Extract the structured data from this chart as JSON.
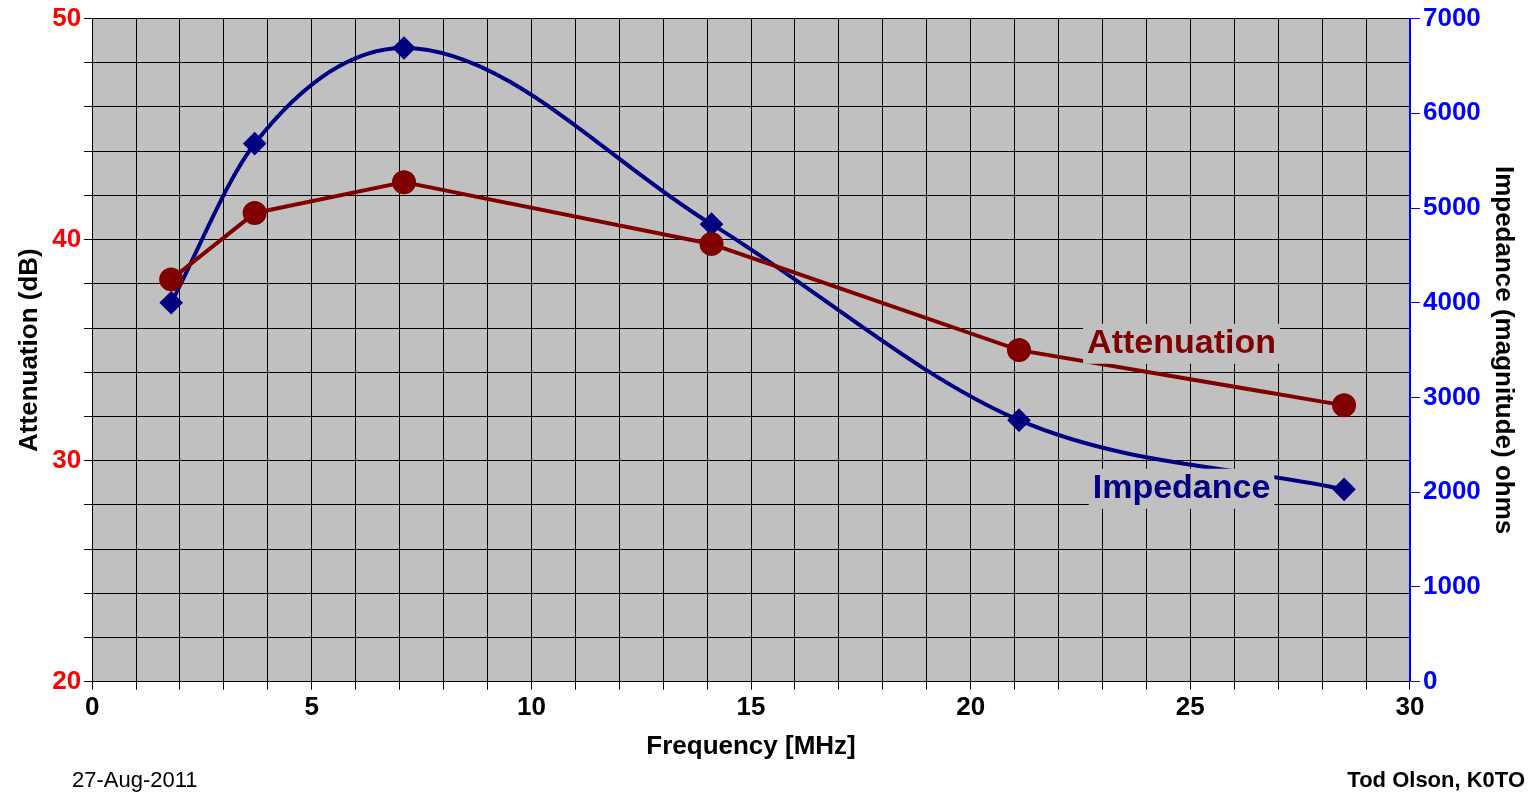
{
  "chart_data": {
    "type": "line",
    "xlabel": "Frequency [MHz]",
    "ylabel": "Attenuation (dB)",
    "y2label": "Impedance (magnitude) ohms",
    "xlim": [
      0,
      30
    ],
    "xticks": [
      0,
      {
        "value": 1,
        "label": null
      },
      {
        "value": 2,
        "label": null
      },
      {
        "value": 3,
        "label": null
      },
      {
        "value": 4,
        "label": null
      },
      5,
      {
        "value": 6,
        "label": null
      },
      {
        "value": 7,
        "label": null
      },
      {
        "value": 8,
        "label": null
      },
      {
        "value": 9,
        "label": null
      },
      10,
      {
        "value": 11,
        "label": null
      },
      {
        "value": 12,
        "label": null
      },
      {
        "value": 13,
        "label": null
      },
      {
        "value": 14,
        "label": null
      },
      15,
      {
        "value": 16,
        "label": null
      },
      {
        "value": 17,
        "label": null
      },
      {
        "value": 18,
        "label": null
      },
      {
        "value": 19,
        "label": null
      },
      20,
      {
        "value": 21,
        "label": null
      },
      {
        "value": 22,
        "label": null
      },
      {
        "value": 23,
        "label": null
      },
      {
        "value": 24,
        "label": null
      },
      25,
      {
        "value": 26,
        "label": null
      },
      {
        "value": 27,
        "label": null
      },
      {
        "value": 28,
        "label": null
      },
      {
        "value": 29,
        "label": null
      },
      30
    ],
    "ylim": [
      20,
      50
    ],
    "yticks": [
      20,
      {
        "value": 22,
        "label": null
      },
      {
        "value": 24,
        "label": null
      },
      {
        "value": 26,
        "label": null
      },
      {
        "value": 28,
        "label": null
      },
      30,
      {
        "value": 32,
        "label": null
      },
      {
        "value": 34,
        "label": null
      },
      {
        "value": 36,
        "label": null
      },
      {
        "value": 38,
        "label": null
      },
      40,
      {
        "value": 42,
        "label": null
      },
      {
        "value": 44,
        "label": null
      },
      {
        "value": 46,
        "label": null
      },
      {
        "value": 48,
        "label": null
      },
      50
    ],
    "y2lim": [
      0,
      7000
    ],
    "y2ticks": [
      0,
      1000,
      2000,
      3000,
      4000,
      5000,
      6000,
      7000
    ],
    "grid": true,
    "legend": false,
    "series": [
      {
        "name": "Attenuation",
        "color": "#800000",
        "marker": "circle",
        "x": [
          1.8,
          3.7,
          7.1,
          14.1,
          21.1,
          28.5
        ],
        "values": [
          38.2,
          41.2,
          42.6,
          39.8,
          35.0,
          32.5
        ]
      },
      {
        "name": "Impedance",
        "color": "#000080",
        "marker": "diamond",
        "axis": "y2",
        "x": [
          1.8,
          3.7,
          7.1,
          14.1,
          21.1,
          28.5
        ],
        "values": [
          4000,
          5680,
          6690,
          4830,
          2760,
          2030
        ]
      }
    ],
    "annotations": [
      "27-Aug-2011",
      "Tod Olson, K0TO"
    ]
  }
}
